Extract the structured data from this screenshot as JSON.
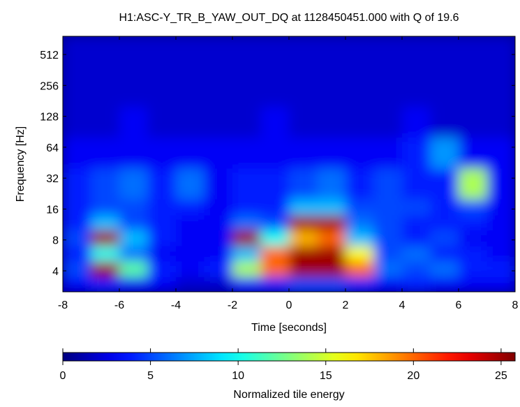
{
  "chart_data": {
    "type": "heatmap",
    "title": "H1:ASC-Y_TR_B_YAW_OUT_DQ at 1128450451.000 with Q of 19.6",
    "xlabel": "Time [seconds]",
    "ylabel": "Frequency [Hz]",
    "x_bins": [
      -8,
      -7,
      -6,
      -5,
      -4,
      -3,
      -2,
      -1,
      0,
      1,
      2,
      3,
      4,
      5,
      6,
      7,
      8
    ],
    "y_bins": [
      2.5,
      3.5,
      5,
      7,
      10,
      14,
      20,
      40,
      80,
      160,
      320,
      770
    ],
    "z": [
      [
        3,
        4,
        3,
        3,
        2,
        2,
        4,
        4,
        5,
        5,
        4,
        3,
        4,
        3,
        3,
        3
      ],
      [
        5,
        25,
        12,
        4,
        3,
        4,
        14,
        20,
        25,
        25,
        20,
        6,
        5,
        6,
        4,
        4
      ],
      [
        4,
        10,
        6,
        3,
        3,
        3,
        8,
        20,
        25,
        25,
        16,
        5,
        6,
        4,
        4,
        3
      ],
      [
        5,
        25,
        8,
        4,
        3,
        3,
        25,
        10,
        18,
        20,
        8,
        5,
        4,
        5,
        3,
        3
      ],
      [
        4,
        8,
        5,
        4,
        3,
        3,
        6,
        5,
        25,
        25,
        6,
        5,
        4,
        4,
        4,
        3
      ],
      [
        4,
        5,
        5,
        4,
        4,
        3,
        4,
        4,
        8,
        8,
        5,
        5,
        5,
        4,
        5,
        3
      ],
      [
        4,
        5,
        6,
        4,
        6,
        3,
        4,
        4,
        5,
        6,
        4,
        5,
        4,
        4,
        14,
        3
      ],
      [
        3,
        3,
        3,
        3,
        3,
        3,
        3,
        3,
        3,
        3,
        3,
        3,
        4,
        7,
        3,
        3
      ],
      [
        2,
        2,
        3,
        2,
        2,
        2,
        2,
        3,
        2,
        2,
        2,
        2,
        3,
        2,
        2,
        2
      ],
      [
        2,
        2,
        2,
        2,
        2,
        2,
        2,
        2,
        2,
        2,
        2,
        2,
        2,
        2,
        2,
        2
      ],
      [
        2,
        2,
        2,
        2,
        2,
        2,
        2,
        2,
        2,
        2,
        2,
        2,
        2,
        2,
        2,
        2
      ]
    ],
    "xlim": [
      -8,
      8
    ],
    "xticks": [
      -8,
      -6,
      -4,
      -2,
      0,
      2,
      4,
      6,
      8
    ],
    "ylim": [
      2.5,
      770
    ],
    "yticks": [
      4,
      8,
      16,
      32,
      64,
      128,
      256,
      512
    ],
    "yscale": "log",
    "colormap": "jet",
    "clim": [
      0,
      25.8
    ],
    "cticks": [
      0,
      5,
      10,
      15,
      20,
      25
    ],
    "colorbar_label": "Normalized tile energy"
  }
}
